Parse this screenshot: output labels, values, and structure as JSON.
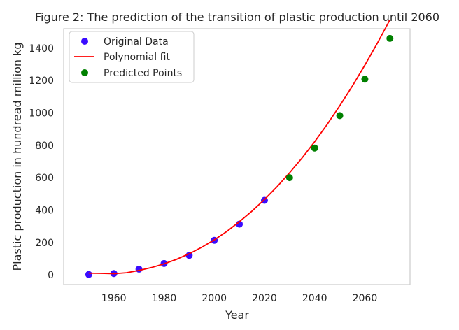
{
  "chart_data": {
    "type": "scatter",
    "title": "Figure 2: The prediction of the transition of plastic production until 2060",
    "xlabel": "Year",
    "ylabel": "Plastic production in hundread million kg",
    "xlim": [
      1940,
      2078
    ],
    "ylim": [
      -60,
      1520
    ],
    "xticks": [
      1960,
      1980,
      2000,
      2020,
      2040,
      2060
    ],
    "yticks": [
      0,
      200,
      400,
      600,
      800,
      1000,
      1200,
      1400
    ],
    "grid": false,
    "legend_position": "top-left",
    "series": [
      {
        "name": "Original Data",
        "kind": "scatter",
        "color": "#3a0cff",
        "x": [
          1950,
          1960,
          1970,
          1980,
          1990,
          2000,
          2010,
          2020
        ],
        "y": [
          2,
          8,
          35,
          70,
          120,
          213,
          313,
          460
        ]
      },
      {
        "name": "Polynomial fit",
        "kind": "line",
        "color": "#ff0000",
        "x": [
          1950,
          1955,
          1960,
          1965,
          1970,
          1975,
          1980,
          1985,
          1990,
          1995,
          2000,
          2005,
          2010,
          2015,
          2020,
          2025,
          2030,
          2035,
          2040,
          2045,
          2050,
          2055,
          2060,
          2065,
          2070
        ],
        "y": [
          10,
          9,
          7,
          13,
          27,
          45,
          68,
          96,
          130,
          170,
          216,
          268,
          328,
          393,
          465,
          544,
          630,
          722,
          822,
          929,
          1044,
          1165,
          1295,
          1431,
          1575
        ]
      },
      {
        "name": "Predicted Points",
        "kind": "scatter",
        "color": "#008000",
        "x": [
          2030,
          2040,
          2050,
          2060,
          2070
        ],
        "y": [
          600,
          783,
          983,
          1208,
          1460
        ]
      }
    ]
  }
}
